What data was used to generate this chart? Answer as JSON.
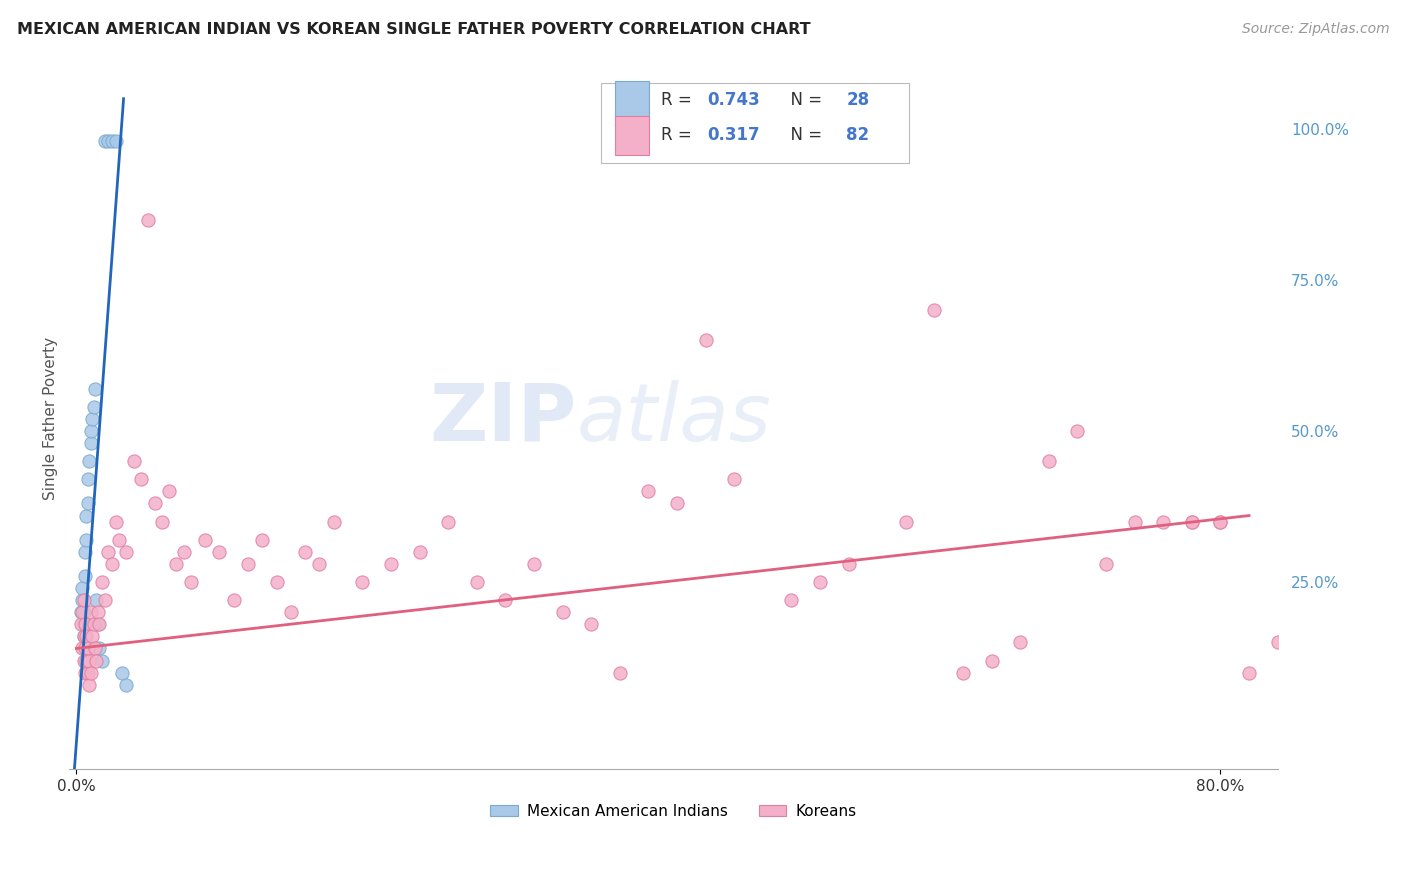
{
  "title": "MEXICAN AMERICAN INDIAN VS KOREAN SINGLE FATHER POVERTY CORRELATION CHART",
  "source": "Source: ZipAtlas.com",
  "ylabel": "Single Father Poverty",
  "watermark_zip": "ZIP",
  "watermark_atlas": "atlas",
  "legend_r1": "0.743",
  "legend_n1": "28",
  "legend_r2": "0.317",
  "legend_n2": "82",
  "color_blue_fill": "#aac8e8",
  "color_blue_edge": "#7aabcf",
  "color_pink_fill": "#f4b0c8",
  "color_pink_edge": "#e080a0",
  "color_line_blue": "#2266bb",
  "color_line_pink": "#e06080",
  "color_text_blue": "#4477cc",
  "color_rn_text": "#333333",
  "color_grid": "#cccccc",
  "color_right_tick": "#5599cc",
  "blue_x": [
    0.003,
    0.004,
    0.004,
    0.005,
    0.005,
    0.005,
    0.006,
    0.006,
    0.007,
    0.007,
    0.008,
    0.008,
    0.009,
    0.01,
    0.01,
    0.011,
    0.012,
    0.013,
    0.014,
    0.015,
    0.016,
    0.018,
    0.02,
    0.022,
    0.025,
    0.028,
    0.032,
    0.035
  ],
  "blue_y": [
    0.2,
    0.22,
    0.24,
    0.16,
    0.18,
    0.2,
    0.26,
    0.3,
    0.32,
    0.36,
    0.38,
    0.42,
    0.45,
    0.48,
    0.5,
    0.52,
    0.54,
    0.57,
    0.22,
    0.18,
    0.14,
    0.12,
    0.98,
    0.98,
    0.98,
    0.98,
    0.1,
    0.08
  ],
  "blue_line_x": [
    -0.002,
    0.033
  ],
  "blue_line_y": [
    -0.08,
    1.05
  ],
  "pink_x": [
    0.003,
    0.004,
    0.004,
    0.005,
    0.005,
    0.005,
    0.006,
    0.006,
    0.006,
    0.007,
    0.007,
    0.008,
    0.008,
    0.009,
    0.009,
    0.01,
    0.01,
    0.011,
    0.012,
    0.013,
    0.014,
    0.015,
    0.016,
    0.018,
    0.02,
    0.022,
    0.025,
    0.028,
    0.03,
    0.035,
    0.04,
    0.045,
    0.05,
    0.055,
    0.06,
    0.065,
    0.07,
    0.075,
    0.08,
    0.09,
    0.1,
    0.11,
    0.12,
    0.13,
    0.14,
    0.15,
    0.16,
    0.17,
    0.18,
    0.2,
    0.22,
    0.24,
    0.26,
    0.28,
    0.3,
    0.32,
    0.34,
    0.36,
    0.38,
    0.4,
    0.42,
    0.44,
    0.46,
    0.5,
    0.52,
    0.54,
    0.58,
    0.6,
    0.62,
    0.64,
    0.66,
    0.68,
    0.7,
    0.72,
    0.74,
    0.76,
    0.78,
    0.78,
    0.8,
    0.8,
    0.82,
    0.84
  ],
  "pink_y": [
    0.18,
    0.14,
    0.2,
    0.12,
    0.16,
    0.22,
    0.1,
    0.14,
    0.18,
    0.12,
    0.16,
    0.1,
    0.14,
    0.08,
    0.12,
    0.1,
    0.2,
    0.16,
    0.18,
    0.14,
    0.12,
    0.2,
    0.18,
    0.25,
    0.22,
    0.3,
    0.28,
    0.35,
    0.32,
    0.3,
    0.45,
    0.42,
    0.85,
    0.38,
    0.35,
    0.4,
    0.28,
    0.3,
    0.25,
    0.32,
    0.3,
    0.22,
    0.28,
    0.32,
    0.25,
    0.2,
    0.3,
    0.28,
    0.35,
    0.25,
    0.28,
    0.3,
    0.35,
    0.25,
    0.22,
    0.28,
    0.2,
    0.18,
    0.1,
    0.4,
    0.38,
    0.65,
    0.42,
    0.22,
    0.25,
    0.28,
    0.35,
    0.7,
    0.1,
    0.12,
    0.15,
    0.45,
    0.5,
    0.28,
    0.35,
    0.35,
    0.35,
    0.35,
    0.35,
    0.35,
    0.1,
    0.15
  ],
  "pink_line_x": [
    0.0,
    0.82
  ],
  "pink_line_y": [
    0.14,
    0.36
  ],
  "xlim": [
    -0.005,
    0.84
  ],
  "ylim": [
    -0.06,
    1.1
  ],
  "xticklabels": [
    "0.0%",
    "80.0%"
  ],
  "xtick_vals": [
    0.0,
    0.8
  ],
  "ytick_right_vals": [
    0.25,
    0.5,
    0.75,
    1.0
  ],
  "ytick_right_labels": [
    "25.0%",
    "50.0%",
    "75.0%",
    "100.0%"
  ]
}
